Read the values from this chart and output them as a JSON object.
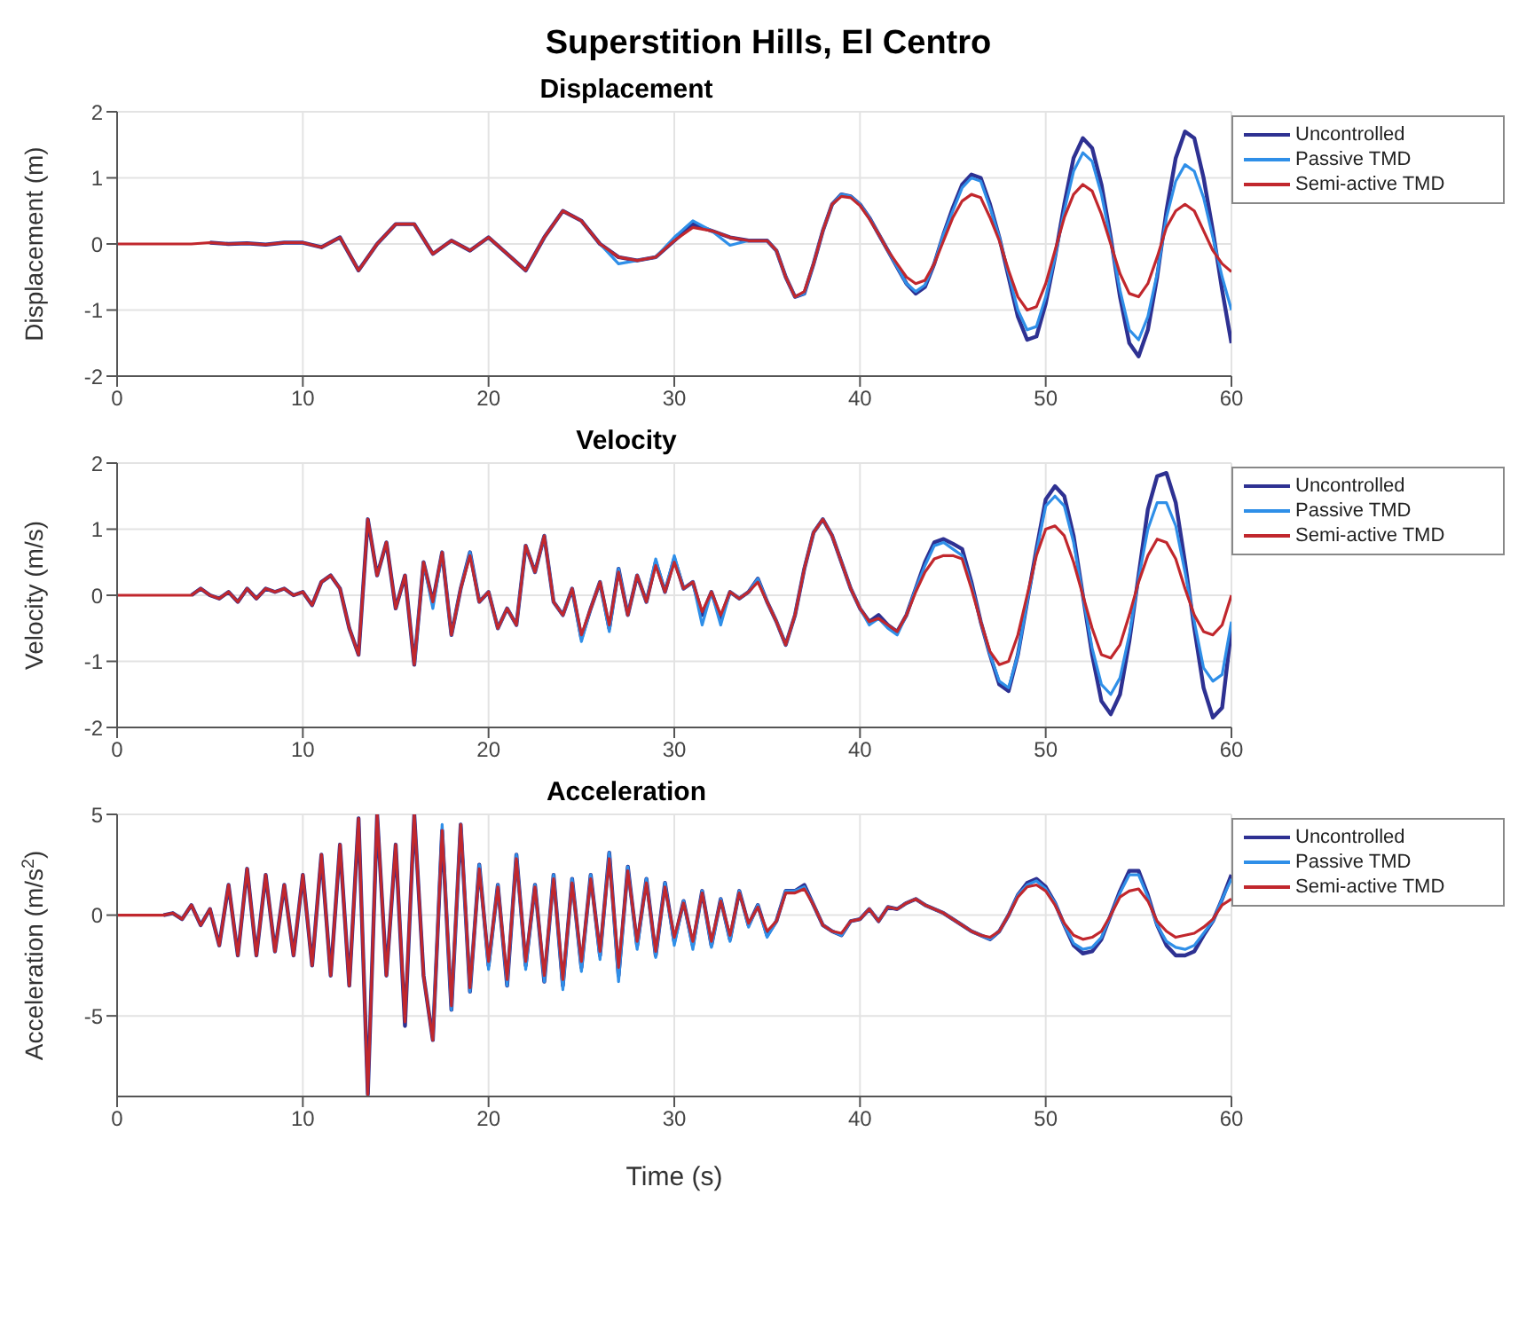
{
  "chart_data": [
    {
      "type": "line",
      "title": "Superstition Hills, El Centro",
      "subtitle": "Displacement",
      "ylabel": "Displacement (m)",
      "xlim": [
        0,
        60
      ],
      "xticks": [
        0,
        10,
        20,
        30,
        40,
        50,
        60
      ],
      "ylim": [
        -2,
        2
      ],
      "yticks": [
        -2,
        -1,
        0,
        1,
        2
      ],
      "grid": true,
      "legend": "top right",
      "x": [
        0,
        1,
        2,
        3,
        4,
        5,
        6,
        7,
        8,
        9,
        10,
        11,
        12,
        13,
        14,
        15,
        16,
        17,
        18,
        19,
        20,
        21,
        22,
        23,
        24,
        25,
        26,
        27,
        28,
        29,
        30,
        31,
        32,
        33,
        34,
        35,
        35.5,
        36,
        36.5,
        37,
        37.5,
        38,
        38.5,
        39,
        39.5,
        40,
        40.5,
        41,
        41.5,
        42,
        42.5,
        43,
        43.5,
        44,
        44.5,
        45,
        45.5,
        46,
        46.5,
        47,
        47.5,
        48,
        48.5,
        49,
        49.5,
        50,
        50.5,
        51,
        51.5,
        52,
        52.5,
        53,
        53.5,
        54,
        54.5,
        55,
        55.5,
        56,
        56.5,
        57,
        57.5,
        58,
        58.5,
        59,
        59.5,
        60
      ],
      "series": [
        {
          "name": "Uncontrolled",
          "color": "#2e3192",
          "values": [
            null,
            null,
            null,
            null,
            null,
            0.02,
            0,
            0.01,
            -0.01,
            0.02,
            0.02,
            -0.05,
            0.1,
            -0.4,
            0,
            0.3,
            0.3,
            -0.15,
            0.05,
            -0.1,
            0.1,
            -0.15,
            -0.4,
            0.1,
            0.5,
            0.35,
            0,
            -0.2,
            -0.25,
            -0.2,
            0.05,
            0.3,
            0.2,
            0.1,
            0.05,
            0.05,
            -0.1,
            -0.5,
            -0.8,
            -0.75,
            -0.3,
            0.2,
            0.6,
            0.75,
            0.72,
            0.6,
            0.4,
            0.15,
            -0.1,
            -0.35,
            -0.6,
            -0.75,
            -0.65,
            -0.3,
            0.15,
            0.55,
            0.9,
            1.05,
            1.0,
            0.6,
            0.1,
            -0.5,
            -1.1,
            -1.45,
            -1.4,
            -0.9,
            -0.2,
            0.6,
            1.3,
            1.6,
            1.45,
            0.9,
            0.1,
            -0.8,
            -1.5,
            -1.7,
            -1.3,
            -0.5,
            0.5,
            1.3,
            1.7,
            1.6,
            1.0,
            0.2,
            -0.7,
            -1.5
          ]
        },
        {
          "name": "Passive TMD",
          "color": "#2f8fe8",
          "values": [
            null,
            null,
            null,
            null,
            null,
            null,
            null,
            null,
            null,
            null,
            null,
            null,
            null,
            null,
            null,
            null,
            null,
            null,
            null,
            null,
            null,
            null,
            null,
            null,
            null,
            null,
            0,
            -0.3,
            -0.25,
            -0.2,
            0.1,
            0.35,
            0.2,
            -0.02,
            0.05,
            0.05,
            -0.1,
            -0.5,
            -0.8,
            -0.75,
            -0.3,
            0.2,
            0.6,
            0.75,
            0.72,
            0.6,
            0.4,
            0.15,
            -0.1,
            -0.35,
            -0.6,
            -0.72,
            -0.62,
            -0.3,
            0.15,
            0.5,
            0.85,
            1.0,
            0.95,
            0.55,
            0.1,
            -0.45,
            -1.0,
            -1.3,
            -1.25,
            -0.8,
            -0.2,
            0.5,
            1.1,
            1.38,
            1.25,
            0.75,
            0.05,
            -0.7,
            -1.3,
            -1.45,
            -1.1,
            -0.45,
            0.4,
            0.95,
            1.2,
            1.1,
            0.7,
            0.1,
            -0.5,
            -1.0
          ]
        },
        {
          "name": "Semi-active TMD",
          "color": "#c1272d",
          "values": [
            0,
            0,
            0,
            0,
            0,
            0.02,
            0,
            0.01,
            -0.01,
            0.02,
            0.02,
            -0.05,
            0.1,
            -0.4,
            0,
            0.3,
            0.3,
            -0.15,
            0.05,
            -0.1,
            0.1,
            -0.15,
            -0.4,
            0.1,
            0.5,
            0.35,
            0,
            -0.2,
            -0.25,
            -0.2,
            0.05,
            0.25,
            0.2,
            0.1,
            0.05,
            0.05,
            -0.1,
            -0.5,
            -0.8,
            -0.72,
            -0.3,
            0.2,
            0.6,
            0.72,
            0.7,
            0.58,
            0.38,
            0.15,
            -0.1,
            -0.3,
            -0.5,
            -0.6,
            -0.55,
            -0.3,
            0.05,
            0.4,
            0.65,
            0.75,
            0.7,
            0.4,
            0.05,
            -0.4,
            -0.8,
            -1.0,
            -0.95,
            -0.6,
            -0.1,
            0.4,
            0.75,
            0.9,
            0.8,
            0.45,
            0,
            -0.45,
            -0.75,
            -0.8,
            -0.6,
            -0.2,
            0.25,
            0.5,
            0.6,
            0.5,
            0.2,
            -0.1,
            -0.3,
            -0.42
          ]
        }
      ]
    },
    {
      "type": "line",
      "subtitle": "Velocity",
      "ylabel": "Velocity (m/s)",
      "xlim": [
        0,
        60
      ],
      "xticks": [
        0,
        10,
        20,
        30,
        40,
        50,
        60
      ],
      "ylim": [
        -2,
        2
      ],
      "yticks": [
        -2,
        -1,
        0,
        1,
        2
      ],
      "grid": true,
      "legend": "top right",
      "x": [
        0,
        0.5,
        1,
        1.5,
        2,
        2.5,
        3,
        3.5,
        4,
        4.5,
        5,
        5.5,
        6,
        6.5,
        7,
        7.5,
        8,
        8.5,
        9,
        9.5,
        10,
        10.5,
        11,
        11.5,
        12,
        12.5,
        13,
        13.5,
        14,
        14.5,
        15,
        15.5,
        16,
        16.5,
        17,
        17.5,
        18,
        18.5,
        19,
        19.5,
        20,
        20.5,
        21,
        21.5,
        22,
        22.5,
        23,
        23.5,
        24,
        24.5,
        25,
        25.5,
        26,
        26.5,
        27,
        27.5,
        28,
        28.5,
        29,
        29.5,
        30,
        30.5,
        31,
        31.5,
        32,
        32.5,
        33,
        33.5,
        34,
        34.5,
        35,
        35.5,
        36,
        36.5,
        37,
        37.5,
        38,
        38.5,
        39,
        39.5,
        40,
        40.5,
        41,
        41.5,
        42,
        42.5,
        43,
        43.5,
        44,
        44.5,
        45,
        45.5,
        46,
        46.5,
        47,
        47.5,
        48,
        48.5,
        49,
        49.5,
        50,
        50.5,
        51,
        51.5,
        52,
        52.5,
        53,
        53.5,
        54,
        54.5,
        55,
        55.5,
        56,
        56.5,
        57,
        57.5,
        58,
        58.5,
        59,
        59.5,
        60
      ],
      "series": [
        {
          "name": "Uncontrolled",
          "color": "#2e3192",
          "values": [
            null,
            null,
            null,
            null,
            null,
            null,
            null,
            null,
            0,
            0.1,
            0,
            -0.05,
            0.05,
            -0.1,
            0.1,
            -0.05,
            0.1,
            0.05,
            0.1,
            0,
            0.05,
            -0.15,
            0.2,
            0.3,
            0.1,
            -0.5,
            -0.9,
            1.15,
            0.3,
            0.8,
            -0.2,
            0.3,
            -1.05,
            0.5,
            -0.1,
            0.65,
            -0.6,
            0.1,
            0.65,
            -0.1,
            0.05,
            -0.5,
            -0.2,
            -0.45,
            0.75,
            0.35,
            0.9,
            -0.1,
            -0.3,
            0.1,
            -0.65,
            -0.2,
            0.2,
            -0.5,
            0.4,
            -0.3,
            0.3,
            -0.1,
            0.5,
            0.05,
            0.55,
            0.1,
            0.2,
            -0.3,
            0.05,
            -0.35,
            0.05,
            -0.05,
            0.05,
            0.25,
            -0.1,
            -0.4,
            -0.75,
            -0.3,
            0.4,
            0.95,
            1.15,
            0.9,
            0.5,
            0.1,
            -0.2,
            -0.4,
            -0.3,
            -0.45,
            -0.55,
            -0.3,
            0.1,
            0.5,
            0.8,
            0.85,
            0.78,
            0.7,
            0.2,
            -0.4,
            -0.9,
            -1.35,
            -1.45,
            -0.9,
            -0.1,
            0.7,
            1.45,
            1.65,
            1.5,
            0.9,
            0,
            -0.9,
            -1.6,
            -1.8,
            -1.5,
            -0.7,
            0.3,
            1.3,
            1.8,
            1.85,
            1.4,
            0.5,
            -0.5,
            -1.4,
            -1.85,
            -1.7,
            -0.5
          ]
        },
        {
          "name": "Passive TMD",
          "color": "#2f8fe8",
          "values": [
            null,
            null,
            null,
            null,
            null,
            null,
            null,
            null,
            null,
            null,
            null,
            null,
            null,
            null,
            null,
            null,
            null,
            null,
            null,
            null,
            null,
            null,
            null,
            null,
            null,
            null,
            null,
            null,
            null,
            null,
            null,
            null,
            -1.05,
            0.5,
            -0.2,
            0.65,
            -0.6,
            0.1,
            0.65,
            -0.1,
            0.05,
            -0.5,
            -0.2,
            -0.45,
            0.75,
            0.35,
            0.9,
            -0.1,
            -0.3,
            0.1,
            -0.7,
            -0.2,
            0.2,
            -0.55,
            0.4,
            -0.3,
            0.3,
            -0.1,
            0.55,
            0.05,
            0.6,
            0.1,
            0.2,
            -0.45,
            0.05,
            -0.45,
            0.05,
            -0.05,
            0.05,
            0.25,
            -0.1,
            -0.4,
            -0.75,
            -0.3,
            0.4,
            0.95,
            1.15,
            0.9,
            0.5,
            0.1,
            -0.2,
            -0.45,
            -0.35,
            -0.5,
            -0.6,
            -0.3,
            0.1,
            0.45,
            0.75,
            0.8,
            0.7,
            0.6,
            0.15,
            -0.4,
            -0.9,
            -1.3,
            -1.4,
            -0.9,
            -0.1,
            0.65,
            1.35,
            1.5,
            1.35,
            0.8,
            0,
            -0.8,
            -1.35,
            -1.5,
            -1.25,
            -0.6,
            0.25,
            1.0,
            1.4,
            1.4,
            1.05,
            0.35,
            -0.4,
            -1.1,
            -1.3,
            -1.2,
            -0.4
          ]
        },
        {
          "name": "Semi-active TMD",
          "color": "#c1272d",
          "values": [
            0,
            0,
            0,
            0,
            0,
            0,
            0,
            0,
            0,
            0.1,
            0,
            -0.05,
            0.05,
            -0.1,
            0.1,
            -0.05,
            0.1,
            0.05,
            0.1,
            0,
            0.05,
            -0.15,
            0.2,
            0.3,
            0.1,
            -0.5,
            -0.9,
            1.15,
            0.3,
            0.8,
            -0.2,
            0.3,
            -1.05,
            0.5,
            -0.1,
            0.65,
            -0.6,
            0.1,
            0.6,
            -0.1,
            0.05,
            -0.5,
            -0.2,
            -0.45,
            0.75,
            0.35,
            0.9,
            -0.1,
            -0.3,
            0.1,
            -0.6,
            -0.2,
            0.2,
            -0.45,
            0.35,
            -0.3,
            0.3,
            -0.1,
            0.45,
            0.05,
            0.5,
            0.1,
            0.2,
            -0.25,
            0.05,
            -0.3,
            0.05,
            -0.05,
            0.05,
            0.2,
            -0.1,
            -0.4,
            -0.75,
            -0.3,
            0.4,
            0.95,
            1.15,
            0.9,
            0.5,
            0.1,
            -0.2,
            -0.4,
            -0.35,
            -0.45,
            -0.55,
            -0.3,
            0.05,
            0.35,
            0.55,
            0.6,
            0.6,
            0.55,
            0.1,
            -0.4,
            -0.85,
            -1.05,
            -1.0,
            -0.6,
            0,
            0.6,
            1.0,
            1.05,
            0.9,
            0.5,
            0,
            -0.5,
            -0.9,
            -0.95,
            -0.75,
            -0.3,
            0.2,
            0.6,
            0.85,
            0.8,
            0.55,
            0.1,
            -0.3,
            -0.55,
            -0.6,
            -0.45,
            0
          ]
        }
      ]
    },
    {
      "type": "line",
      "subtitle": "Acceleration",
      "xlabel": "Time (s)",
      "ylabel": "Acceleration (m/s$^{2}$)",
      "xlim": [
        0,
        60
      ],
      "xticks": [
        0,
        10,
        20,
        30,
        40,
        50,
        60
      ],
      "ylim": [
        -9,
        5
      ],
      "yticks": [
        -5,
        0,
        5
      ],
      "grid": true,
      "legend": "top right",
      "x": [
        0,
        0.5,
        1,
        1.5,
        2,
        2.5,
        3,
        3.5,
        4,
        4.5,
        5,
        5.5,
        6,
        6.5,
        7,
        7.5,
        8,
        8.5,
        9,
        9.5,
        10,
        10.5,
        11,
        11.5,
        12,
        12.5,
        13,
        13.5,
        14,
        14.5,
        15,
        15.5,
        16,
        16.5,
        17,
        17.5,
        18,
        18.5,
        19,
        19.5,
        20,
        20.5,
        21,
        21.5,
        22,
        22.5,
        23,
        23.5,
        24,
        24.5,
        25,
        25.5,
        26,
        26.5,
        27,
        27.5,
        28,
        28.5,
        29,
        29.5,
        30,
        30.5,
        31,
        31.5,
        32,
        32.5,
        33,
        33.5,
        34,
        34.5,
        35,
        35.5,
        36,
        36.5,
        37,
        37.5,
        38,
        38.5,
        39,
        39.5,
        40,
        40.5,
        41,
        41.5,
        42,
        42.5,
        43,
        43.5,
        44,
        44.5,
        45,
        45.5,
        46,
        46.5,
        47,
        47.5,
        48,
        48.5,
        49,
        49.5,
        50,
        50.5,
        51,
        51.5,
        52,
        52.5,
        53,
        53.5,
        54,
        54.5,
        55,
        55.5,
        56,
        56.5,
        57,
        57.5,
        58,
        58.5,
        59,
        59.5,
        60
      ],
      "series": [
        {
          "name": "Uncontrolled",
          "color": "#2e3192",
          "values": [
            null,
            null,
            null,
            null,
            null,
            0,
            0.1,
            -0.2,
            0.5,
            -0.5,
            0.3,
            -1.5,
            1.5,
            -2,
            2.3,
            -2,
            2,
            -1.8,
            1.5,
            -2,
            2,
            -2.5,
            3,
            -3,
            3.5,
            -3.5,
            4.8,
            -8.9,
            5,
            -3,
            3.5,
            -5.5,
            5,
            -3,
            -6.2,
            4.2,
            -4.7,
            4.5,
            -3.8,
            2.5,
            -2.5,
            1.5,
            -3.5,
            3,
            -2.5,
            1.5,
            -3.3,
            2,
            -3.5,
            1.8,
            -2.6,
            2,
            -2,
            3.1,
            -3,
            2.4,
            -1.5,
            1.8,
            -2,
            1.6,
            -1.3,
            0.7,
            -1.5,
            1.2,
            -1.5,
            0.8,
            -1.2,
            1.2,
            -0.5,
            0.5,
            -1,
            -0.3,
            1.2,
            1.2,
            1.5,
            0.5,
            -0.5,
            -0.8,
            -1,
            -0.3,
            -0.2,
            0.3,
            -0.3,
            0.4,
            0.3,
            0.6,
            0.8,
            0.5,
            0.3,
            0.1,
            -0.2,
            -0.5,
            -0.8,
            -1,
            -1.2,
            -0.8,
            0,
            1,
            1.6,
            1.8,
            1.4,
            0.6,
            -0.5,
            -1.5,
            -1.9,
            -1.8,
            -1.2,
            0,
            1.2,
            2.2,
            2.2,
            1,
            -0.5,
            -1.5,
            -2,
            -2,
            -1.8,
            -1,
            -0.3,
            0.8,
            2
          ]
        },
        {
          "name": "Passive TMD",
          "color": "#2f8fe8",
          "values": [
            null,
            null,
            null,
            null,
            null,
            null,
            null,
            null,
            null,
            null,
            null,
            null,
            null,
            null,
            null,
            null,
            null,
            null,
            null,
            null,
            null,
            null,
            null,
            null,
            null,
            null,
            null,
            null,
            null,
            null,
            null,
            null,
            null,
            null,
            -6.2,
            4.5,
            -4.7,
            4.5,
            -3.8,
            2.5,
            -2.7,
            1.5,
            -3.5,
            3,
            -2.7,
            1.5,
            -3.3,
            2,
            -3.7,
            1.8,
            -2.8,
            2,
            -2.2,
            3.1,
            -3.3,
            2.4,
            -1.7,
            1.8,
            -2.1,
            1.6,
            -1.5,
            0.7,
            -1.7,
            1.2,
            -1.6,
            0.8,
            -1.3,
            1.2,
            -0.6,
            0.5,
            -1.1,
            -0.3,
            1.2,
            1.2,
            1.4,
            0.5,
            -0.5,
            -0.8,
            -1,
            -0.3,
            -0.2,
            0.3,
            -0.3,
            0.4,
            0.3,
            0.6,
            0.8,
            0.5,
            0.3,
            0.1,
            -0.2,
            -0.5,
            -0.8,
            -1,
            -1.2,
            -0.8,
            0,
            1,
            1.5,
            1.7,
            1.3,
            0.6,
            -0.5,
            -1.4,
            -1.7,
            -1.6,
            -1.1,
            0,
            1.1,
            2.0,
            2.0,
            0.9,
            -0.5,
            -1.3,
            -1.6,
            -1.7,
            -1.5,
            -0.9,
            -0.3,
            0.8,
            1.8
          ]
        },
        {
          "name": "Semi-active TMD",
          "color": "#c1272d",
          "values": [
            0,
            0,
            0,
            0,
            0,
            0,
            0.1,
            -0.2,
            0.5,
            -0.5,
            0.3,
            -1.5,
            1.5,
            -2,
            2.3,
            -2,
            2,
            -1.8,
            1.5,
            -2,
            2,
            -2.5,
            3,
            -3,
            3.5,
            -3.5,
            4.8,
            -8.9,
            5,
            -3,
            3.5,
            -5.3,
            5,
            -3,
            -6.2,
            4.2,
            -4.5,
            4.5,
            -3.6,
            2.3,
            -2.3,
            1.4,
            -3.2,
            2.8,
            -2.3,
            1.4,
            -3,
            1.8,
            -3.2,
            1.6,
            -2.3,
            1.8,
            -1.8,
            2.8,
            -2.6,
            2.2,
            -1.3,
            1.6,
            -1.8,
            1.4,
            -1.1,
            0.6,
            -1.3,
            1.1,
            -1.3,
            0.7,
            -1,
            1.1,
            -0.4,
            0.4,
            -0.8,
            -0.3,
            1.1,
            1.1,
            1.3,
            0.5,
            -0.5,
            -0.8,
            -0.9,
            -0.3,
            -0.2,
            0.3,
            -0.3,
            0.4,
            0.3,
            0.6,
            0.8,
            0.5,
            0.3,
            0.1,
            -0.2,
            -0.5,
            -0.8,
            -1,
            -1.1,
            -0.8,
            0,
            0.9,
            1.4,
            1.5,
            1.2,
            0.5,
            -0.4,
            -1.0,
            -1.2,
            -1.1,
            -0.8,
            0,
            0.9,
            1.2,
            1.3,
            0.7,
            -0.3,
            -0.8,
            -1.1,
            -1.0,
            -0.9,
            -0.6,
            -0.2,
            0.5,
            0.8
          ]
        }
      ]
    }
  ]
}
